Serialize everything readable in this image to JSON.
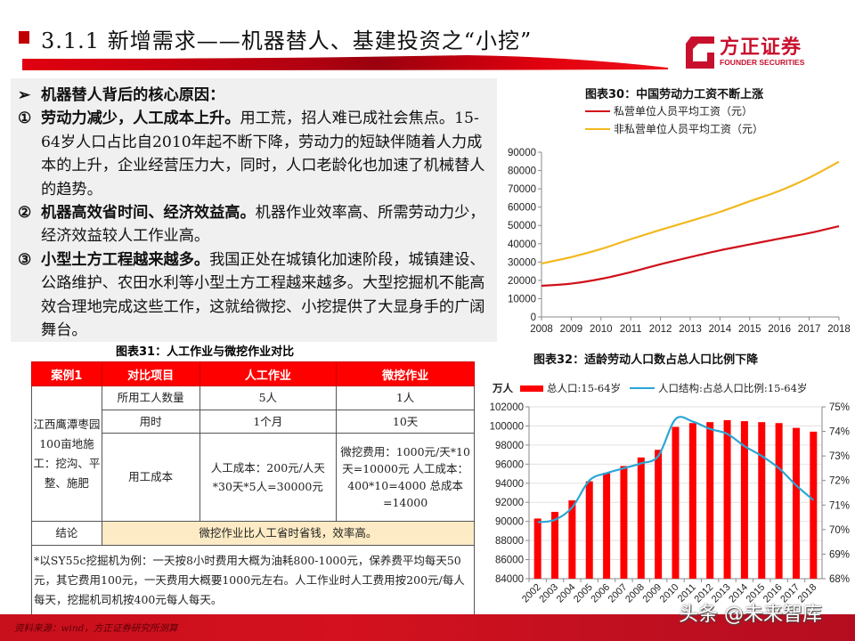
{
  "header": {
    "title": "3.1.1 新增需求——机器替人、基建投资之“小挖”",
    "logo_cn": "方正证券",
    "logo_en": "FOUNDER SECURITIES",
    "brand_color": "#c8102e"
  },
  "textbox": {
    "heading_marker": "➢",
    "heading": "机器替人背后的核心原因：",
    "points": [
      {
        "marker": "①",
        "bold": "劳动力减少，人工成本上升。",
        "text": "用工荒，招人难已成社会焦点。15-64岁人口占比自2010年起不断下降，劳动力的短缺伴随着人力成本的上升，企业经营压力大，同时，人口老龄化也加速了机械替人的趋势。"
      },
      {
        "marker": "②",
        "bold": "机器高效省时间、经济效益高。",
        "text": "机器作业效率高、所需劳动力少，经济效益较人工作业高。"
      },
      {
        "marker": "③",
        "bold": "小型土方工程越来越多。",
        "text": "我国正处在城镇化加速阶段，城镇建设、公路维护、农田水利等小型土方工程越来越多。大型挖掘机不能高效合理地完成这些工作，这就给微挖、小挖提供了大显身手的广阔舞台。"
      }
    ]
  },
  "table": {
    "caption": "图表31：人工作业与微挖作业对比",
    "headers": [
      "案例1",
      "对比项目",
      "人工作业",
      "微挖作业"
    ],
    "case_label": "江西鹰潭枣园100亩地施工：挖沟、平整、施肥",
    "rows": [
      {
        "item": "所用工人数量",
        "manual": "5人",
        "mini": "1人"
      },
      {
        "item": "用时",
        "manual": "1个月",
        "mini": "10天"
      },
      {
        "item": "用工成本",
        "manual": "人工成本：200元/人天*30天*5人=30000元",
        "mini": "微挖费用：1000元/天*10天=10000元 人工成本：400*10=4000 总成本=14000"
      }
    ],
    "conclusion_label": "结论",
    "conclusion": "微挖作业比人工省时省钱，效率高。",
    "note": "*以SY55c挖掘机为例：一天按8小时费用大概为油耗800-1000元，保养费平均每天50元，其它费用100元，一天费用大概要1000元左右。人工作业时人工费用按200元/每人每天，挖掘机司机按400元每人每天。"
  },
  "footer": {
    "source": "资料来源：wind，方正证券研究所测算",
    "watermark": "头条 @未来智库"
  },
  "chart_data": [
    {
      "type": "line",
      "title": "图表30：中国劳动力工资不断上涨",
      "x": [
        2008,
        2009,
        2010,
        2011,
        2012,
        2013,
        2014,
        2015,
        2016,
        2017,
        2018
      ],
      "series": [
        {
          "name": "私营单位人员平均工资（元）",
          "color": "#d0101a",
          "values": [
            17000,
            18200,
            20800,
            24500,
            28800,
            32700,
            36400,
            39600,
            42800,
            45800,
            49600
          ]
        },
        {
          "name": "非私营单位人员平均工资（元）",
          "color": "#f2b81e",
          "values": [
            29200,
            32700,
            37100,
            42500,
            47600,
            52400,
            57400,
            63200,
            68900,
            76100,
            84800
          ]
        }
      ],
      "ylim": [
        0,
        90000
      ],
      "yticks": [
        0,
        10000,
        20000,
        30000,
        40000,
        50000,
        60000,
        70000,
        80000,
        90000
      ],
      "xlabel": "",
      "ylabel": "",
      "grid": false,
      "legend_position": "top"
    },
    {
      "type": "bar+line",
      "title": "图表32：适龄劳动人口数占总人口比例下降",
      "unit_left": "万人",
      "categories": [
        "2002",
        "2003",
        "2004",
        "2005",
        "2006",
        "2007",
        "2008",
        "2009",
        "2010",
        "2011",
        "2012",
        "2013",
        "2014",
        "2015",
        "2016",
        "2017",
        "2018"
      ],
      "series": [
        {
          "name": "总人口:15-64岁",
          "type": "bar",
          "axis": "left",
          "color": "#ff0000",
          "values": [
            90300,
            91000,
            92200,
            94200,
            95100,
            95800,
            96700,
            97500,
            99900,
            100300,
            100400,
            100600,
            100500,
            100400,
            100300,
            99800,
            99400
          ]
        },
        {
          "name": "人口结构:占总人口比例:15-64岁",
          "type": "line",
          "axis": "right",
          "color": "#2aa6d6",
          "values": [
            70.3,
            70.4,
            70.9,
            72.0,
            72.3,
            72.5,
            72.7,
            73.0,
            74.5,
            74.4,
            74.1,
            73.9,
            73.4,
            73.0,
            72.5,
            71.8,
            71.2
          ]
        }
      ],
      "ylim_left": [
        84000,
        102000
      ],
      "yticks_left": [
        84000,
        86000,
        88000,
        90000,
        92000,
        94000,
        96000,
        98000,
        100000,
        102000
      ],
      "ylim_right": [
        68,
        75
      ],
      "yticks_right": [
        "68%",
        "69%",
        "70%",
        "71%",
        "72%",
        "73%",
        "74%",
        "75%"
      ],
      "grid": true,
      "legend_position": "top"
    }
  ]
}
